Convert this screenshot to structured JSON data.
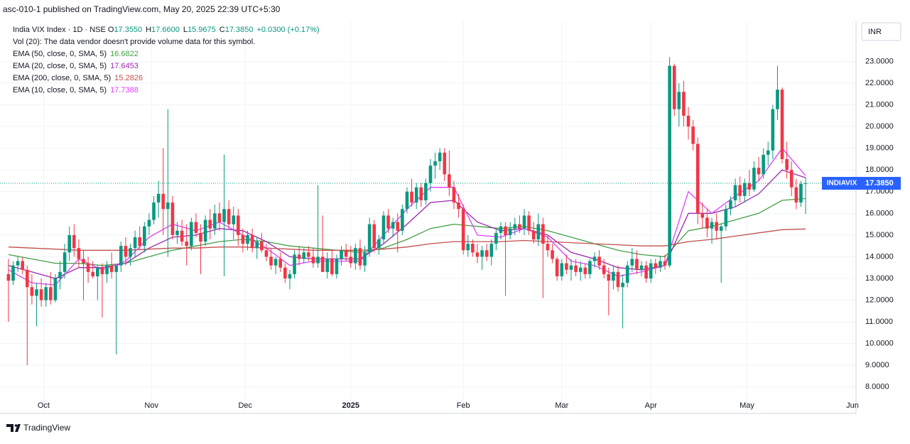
{
  "chart_data": {
    "type": "candlestick",
    "header": "asc-010-1 published on TradingView.com, May 20, 2025 22:39 UTC+5:30",
    "symbol": "India VIX Index · 1D · NSE",
    "ohlc": [
      {
        "label": "O",
        "value": "17.3550"
      },
      {
        "label": "H",
        "value": "17.6600"
      },
      {
        "label": "L",
        "value": "15.9675"
      },
      {
        "label": "C",
        "value": "17.3850"
      }
    ],
    "change": "+0.0300 (+0.17%)",
    "volume_note": "Vol (20): The data vendor doesn't provide volume data for this symbol.",
    "currency": "INR",
    "symbol_tag": "INDIAVIX",
    "last_price_label": "17.3850",
    "footer": "TradingView",
    "up_color": "#089981",
    "down_color": "#f23645",
    "grid": true,
    "candles": [
      [
        13.2,
        13.9,
        11.0,
        12.9
      ],
      [
        12.9,
        13.8,
        12.7,
        13.6
      ],
      [
        13.6,
        14.0,
        13.3,
        13.8
      ],
      [
        13.8,
        14.0,
        13.2,
        13.4
      ],
      [
        13.4,
        13.6,
        9.0,
        12.6
      ],
      [
        12.6,
        13.2,
        11.8,
        12.2
      ],
      [
        12.2,
        12.8,
        10.8,
        12.5
      ],
      [
        12.5,
        13.0,
        11.7,
        12.0
      ],
      [
        12.0,
        12.8,
        11.7,
        12.6
      ],
      [
        12.6,
        13.3,
        11.8,
        12.0
      ],
      [
        12.0,
        13.2,
        11.9,
        13.0
      ],
      [
        13.0,
        13.8,
        12.5,
        13.3
      ],
      [
        13.3,
        14.6,
        13.0,
        14.2
      ],
      [
        14.2,
        15.4,
        13.8,
        15.0
      ],
      [
        15.0,
        15.5,
        14.0,
        14.4
      ],
      [
        14.4,
        14.8,
        13.5,
        13.9
      ],
      [
        13.9,
        14.3,
        12.0,
        13.7
      ],
      [
        13.7,
        14.0,
        12.8,
        13.3
      ],
      [
        13.3,
        13.8,
        13.0,
        13.1
      ],
      [
        13.1,
        13.6,
        12.0,
        13.5
      ],
      [
        13.5,
        13.7,
        11.2,
        13.2
      ],
      [
        13.2,
        13.8,
        12.8,
        13.6
      ],
      [
        13.6,
        14.2,
        13.0,
        13.3
      ],
      [
        13.3,
        13.5,
        9.5,
        13.6
      ],
      [
        13.6,
        14.7,
        13.3,
        14.5
      ],
      [
        14.5,
        14.9,
        13.6,
        14.0
      ],
      [
        14.0,
        14.6,
        13.6,
        14.4
      ],
      [
        14.4,
        15.2,
        14.0,
        14.9
      ],
      [
        14.9,
        15.4,
        14.3,
        14.5
      ],
      [
        14.5,
        15.6,
        14.2,
        15.4
      ],
      [
        15.4,
        16.0,
        15.0,
        15.7
      ],
      [
        15.7,
        16.8,
        15.5,
        16.5
      ],
      [
        16.5,
        17.5,
        15.8,
        16.9
      ],
      [
        16.9,
        19.0,
        15.0,
        16.2
      ],
      [
        16.2,
        20.8,
        14.0,
        16.5
      ],
      [
        16.5,
        16.8,
        14.8,
        15.0
      ],
      [
        15.0,
        15.6,
        14.6,
        15.2
      ],
      [
        15.2,
        15.7,
        14.5,
        14.7
      ],
      [
        14.7,
        15.5,
        13.6,
        14.5
      ],
      [
        14.5,
        15.8,
        14.3,
        15.6
      ],
      [
        15.6,
        16.0,
        14.9,
        15.1
      ],
      [
        15.1,
        15.5,
        13.2,
        14.7
      ],
      [
        14.7,
        15.9,
        14.5,
        15.7
      ],
      [
        15.7,
        16.2,
        14.8,
        15.3
      ],
      [
        15.3,
        16.4,
        15.0,
        16.0
      ],
      [
        16.0,
        16.5,
        15.2,
        15.6
      ],
      [
        15.6,
        18.7,
        13.1,
        16.2
      ],
      [
        16.2,
        16.6,
        15.3,
        15.5
      ],
      [
        15.5,
        16.3,
        14.8,
        15.9
      ],
      [
        15.9,
        16.2,
        14.5,
        15.0
      ],
      [
        15.0,
        15.3,
        14.2,
        14.6
      ],
      [
        14.6,
        15.2,
        14.3,
        15.0
      ],
      [
        15.0,
        15.3,
        14.2,
        14.4
      ],
      [
        14.4,
        14.9,
        13.9,
        14.7
      ],
      [
        14.7,
        15.1,
        14.2,
        14.3
      ],
      [
        14.3,
        14.6,
        13.8,
        14.0
      ],
      [
        14.0,
        14.4,
        13.4,
        13.6
      ],
      [
        13.6,
        14.0,
        13.2,
        13.9
      ],
      [
        13.9,
        14.2,
        13.3,
        13.5
      ],
      [
        13.5,
        13.7,
        12.8,
        13.0
      ],
      [
        13.0,
        13.4,
        12.5,
        13.2
      ],
      [
        13.2,
        14.3,
        13.0,
        14.1
      ],
      [
        14.1,
        14.5,
        13.6,
        13.9
      ],
      [
        13.9,
        14.4,
        13.7,
        14.2
      ],
      [
        14.2,
        14.5,
        13.8,
        14.0
      ],
      [
        14.0,
        14.4,
        13.5,
        13.7
      ],
      [
        13.7,
        17.3,
        13.5,
        14.0
      ],
      [
        14.0,
        15.9,
        13.3,
        13.3
      ],
      [
        13.3,
        14.2,
        13.0,
        13.9
      ],
      [
        13.9,
        14.3,
        13.1,
        13.2
      ],
      [
        13.2,
        14.1,
        13.0,
        13.9
      ],
      [
        13.9,
        14.5,
        13.6,
        14.3
      ],
      [
        14.3,
        14.6,
        13.8,
        14.0
      ],
      [
        14.0,
        14.5,
        13.5,
        13.7
      ],
      [
        13.7,
        14.6,
        13.4,
        14.4
      ],
      [
        14.4,
        14.8,
        13.4,
        13.6
      ],
      [
        13.6,
        14.5,
        13.3,
        14.2
      ],
      [
        14.2,
        15.8,
        14.0,
        15.5
      ],
      [
        15.5,
        15.7,
        14.2,
        14.4
      ],
      [
        14.4,
        15.0,
        14.1,
        14.8
      ],
      [
        14.8,
        16.1,
        14.6,
        15.9
      ],
      [
        15.9,
        16.2,
        15.1,
        15.3
      ],
      [
        15.3,
        15.8,
        14.9,
        15.6
      ],
      [
        15.6,
        16.0,
        14.2,
        15.2
      ],
      [
        15.2,
        16.4,
        15.0,
        16.2
      ],
      [
        16.2,
        17.2,
        16.0,
        17.0
      ],
      [
        17.0,
        17.6,
        16.3,
        16.5
      ],
      [
        16.5,
        17.4,
        16.2,
        17.2
      ],
      [
        17.2,
        17.4,
        16.3,
        16.6
      ],
      [
        16.6,
        17.6,
        16.4,
        17.4
      ],
      [
        17.4,
        18.5,
        17.0,
        18.2
      ],
      [
        18.2,
        18.8,
        17.6,
        18.4
      ],
      [
        18.4,
        19.0,
        18.0,
        18.8
      ],
      [
        18.8,
        19.0,
        17.5,
        17.8
      ],
      [
        17.8,
        18.9,
        16.8,
        17.2
      ],
      [
        17.2,
        17.5,
        16.2,
        16.5
      ],
      [
        16.5,
        16.9,
        15.8,
        16.2
      ],
      [
        16.2,
        16.4,
        14.1,
        14.3
      ],
      [
        14.3,
        15.0,
        14.0,
        14.6
      ],
      [
        14.6,
        14.8,
        14.0,
        14.2
      ],
      [
        14.2,
        14.6,
        13.7,
        14.0
      ],
      [
        14.0,
        14.5,
        13.4,
        14.3
      ],
      [
        14.3,
        14.6,
        13.8,
        14.0
      ],
      [
        14.0,
        14.8,
        13.6,
        14.6
      ],
      [
        14.6,
        15.3,
        14.3,
        15.1
      ],
      [
        15.1,
        15.6,
        14.8,
        15.4
      ],
      [
        15.4,
        15.6,
        12.2,
        15.0
      ],
      [
        15.0,
        15.6,
        14.8,
        15.3
      ],
      [
        15.3,
        15.8,
        15.0,
        15.5
      ],
      [
        15.5,
        15.9,
        15.1,
        15.3
      ],
      [
        15.3,
        16.2,
        15.0,
        15.9
      ],
      [
        15.9,
        16.1,
        15.0,
        15.2
      ],
      [
        15.2,
        15.6,
        14.6,
        14.8
      ],
      [
        14.8,
        16.0,
        14.5,
        15.5
      ],
      [
        15.5,
        15.8,
        12.1,
        14.6
      ],
      [
        14.6,
        15.0,
        14.0,
        14.3
      ],
      [
        14.3,
        14.6,
        13.7,
        13.9
      ],
      [
        13.9,
        14.0,
        12.9,
        13.1
      ],
      [
        13.1,
        13.9,
        12.9,
        13.7
      ],
      [
        13.7,
        14.1,
        13.2,
        13.4
      ],
      [
        13.4,
        13.9,
        12.9,
        13.6
      ],
      [
        13.6,
        13.9,
        13.1,
        13.3
      ],
      [
        13.3,
        13.8,
        12.9,
        13.5
      ],
      [
        13.5,
        13.7,
        13.0,
        13.2
      ],
      [
        13.2,
        13.9,
        13.0,
        13.8
      ],
      [
        13.8,
        14.2,
        13.5,
        14.0
      ],
      [
        14.0,
        14.3,
        13.4,
        13.6
      ],
      [
        13.6,
        13.9,
        13.0,
        13.2
      ],
      [
        13.2,
        13.5,
        11.3,
        12.9
      ],
      [
        12.9,
        13.6,
        12.5,
        13.3
      ],
      [
        13.3,
        13.6,
        12.4,
        12.6
      ],
      [
        12.6,
        13.2,
        10.7,
        12.8
      ],
      [
        12.8,
        13.8,
        12.6,
        13.6
      ],
      [
        13.6,
        14.4,
        13.3,
        13.9
      ],
      [
        13.9,
        14.3,
        13.2,
        13.4
      ],
      [
        13.4,
        13.8,
        13.1,
        13.6
      ],
      [
        13.6,
        13.8,
        12.8,
        13.0
      ],
      [
        13.0,
        13.9,
        12.8,
        13.7
      ],
      [
        13.7,
        13.9,
        13.2,
        13.5
      ],
      [
        13.5,
        14.0,
        13.3,
        13.8
      ],
      [
        13.8,
        14.1,
        13.4,
        13.6
      ],
      [
        13.6,
        23.2,
        13.5,
        22.8
      ],
      [
        22.8,
        22.9,
        20.5,
        20.8
      ],
      [
        20.8,
        22.0,
        20.0,
        21.6
      ],
      [
        21.6,
        22.1,
        20.0,
        20.5
      ],
      [
        20.5,
        20.9,
        19.4,
        20.0
      ],
      [
        20.0,
        20.3,
        18.9,
        19.2
      ],
      [
        19.2,
        19.5,
        15.5,
        16.0
      ],
      [
        16.0,
        16.5,
        15.3,
        15.8
      ],
      [
        15.8,
        16.2,
        14.9,
        15.3
      ],
      [
        15.3,
        15.8,
        14.6,
        15.6
      ],
      [
        15.6,
        16.0,
        14.8,
        15.2
      ],
      [
        15.2,
        15.5,
        12.8,
        15.4
      ],
      [
        15.4,
        16.4,
        15.2,
        16.2
      ],
      [
        16.2,
        16.8,
        15.9,
        16.6
      ],
      [
        16.6,
        17.6,
        16.3,
        17.3
      ],
      [
        17.3,
        17.7,
        16.5,
        16.8
      ],
      [
        16.8,
        17.6,
        16.5,
        17.4
      ],
      [
        17.4,
        18.0,
        16.8,
        17.1
      ],
      [
        17.1,
        18.4,
        17.0,
        18.1
      ],
      [
        18.1,
        18.6,
        17.5,
        17.8
      ],
      [
        17.8,
        19.0,
        17.6,
        18.7
      ],
      [
        18.7,
        19.3,
        18.2,
        18.9
      ],
      [
        18.9,
        21.0,
        18.5,
        20.8
      ],
      [
        20.8,
        22.8,
        20.3,
        21.7
      ],
      [
        21.7,
        21.8,
        18.3,
        18.5
      ],
      [
        18.5,
        19.3,
        17.6,
        18.0
      ],
      [
        18.0,
        18.4,
        16.8,
        17.2
      ],
      [
        17.2,
        17.6,
        16.2,
        16.5
      ],
      [
        16.5,
        17.5,
        16.3,
        17.355
      ],
      [
        17.355,
        17.66,
        15.9675,
        17.385
      ]
    ],
    "series": [
      {
        "name": "EMA (50, close, 0, SMA, 5)",
        "legend_value": "16.6822",
        "color": "#43a047",
        "x": [
          0,
          5,
          10,
          15,
          20,
          25,
          30,
          35,
          40,
          45,
          50,
          55,
          60,
          65,
          70,
          75,
          80,
          85,
          90,
          95,
          100,
          105,
          110,
          115,
          120,
          125,
          130,
          135,
          140,
          145,
          150,
          155,
          160,
          165,
          170
        ],
        "values": [
          14.1,
          13.9,
          13.7,
          13.7,
          13.6,
          13.7,
          14.0,
          14.3,
          14.5,
          14.7,
          14.8,
          14.7,
          14.5,
          14.4,
          14.3,
          14.2,
          14.4,
          14.8,
          15.3,
          15.5,
          15.4,
          15.3,
          15.4,
          15.2,
          14.9,
          14.6,
          14.3,
          14.1,
          14.0,
          15.2,
          15.4,
          15.7,
          16.0,
          16.6,
          16.6822
        ]
      },
      {
        "name": "EMA (20, close, 0, SMA, 5)",
        "legend_value": "17.6453",
        "color": "#9c27b0",
        "x": [
          0,
          5,
          10,
          15,
          20,
          25,
          30,
          35,
          40,
          45,
          50,
          55,
          60,
          65,
          70,
          75,
          80,
          85,
          90,
          95,
          100,
          105,
          110,
          115,
          120,
          125,
          130,
          135,
          140,
          145,
          150,
          155,
          160,
          165,
          170
        ],
        "values": [
          13.6,
          13.3,
          13.0,
          13.5,
          13.5,
          13.7,
          14.4,
          14.9,
          15.0,
          15.3,
          15.2,
          14.7,
          14.0,
          13.9,
          13.9,
          13.9,
          14.6,
          15.5,
          16.5,
          16.6,
          15.6,
          15.2,
          15.3,
          15.0,
          14.2,
          13.9,
          13.5,
          13.4,
          13.6,
          16.0,
          16.0,
          16.3,
          16.9,
          18.0,
          17.6453
        ]
      },
      {
        "name": "EMA (200, close, 0, SMA, 5)",
        "legend_value": "15.2826",
        "color": "#c0504d",
        "x": [
          0,
          5,
          10,
          15,
          20,
          25,
          30,
          35,
          40,
          45,
          50,
          55,
          60,
          65,
          70,
          75,
          80,
          85,
          90,
          95,
          100,
          105,
          110,
          115,
          120,
          125,
          130,
          135,
          140,
          145,
          150,
          155,
          160,
          165,
          170
        ],
        "values": [
          14.45,
          14.4,
          14.35,
          14.3,
          14.3,
          14.3,
          14.35,
          14.4,
          14.4,
          14.45,
          14.45,
          14.4,
          14.35,
          14.3,
          14.3,
          14.3,
          14.35,
          14.45,
          14.6,
          14.7,
          14.7,
          14.7,
          14.75,
          14.7,
          14.65,
          14.6,
          14.55,
          14.5,
          14.5,
          14.7,
          14.8,
          14.95,
          15.1,
          15.25,
          15.2826
        ]
      },
      {
        "name": "EMA (10, close, 0, SMA, 5)",
        "legend_value": "17.7388",
        "color": "#e040fb",
        "x": [
          0,
          5,
          10,
          15,
          20,
          25,
          30,
          35,
          40,
          45,
          50,
          55,
          60,
          65,
          70,
          75,
          80,
          85,
          90,
          95,
          100,
          105,
          110,
          115,
          120,
          125,
          130,
          135,
          140,
          145,
          150,
          155,
          160,
          165,
          170
        ],
        "values": [
          13.4,
          12.8,
          12.7,
          13.9,
          13.4,
          13.8,
          14.9,
          15.5,
          15.2,
          15.6,
          15.0,
          14.4,
          13.6,
          13.8,
          13.8,
          13.8,
          15.0,
          16.2,
          17.2,
          17.2,
          15.0,
          14.9,
          15.3,
          14.9,
          13.8,
          13.6,
          13.1,
          13.3,
          13.6,
          17.0,
          16.0,
          16.8,
          17.5,
          19.0,
          17.7388
        ]
      }
    ],
    "xlim": [
      -1.8,
      180.75
    ],
    "xticks": [
      {
        "value": 7.5,
        "label": "Oct"
      },
      {
        "value": 30.5,
        "label": "Nov"
      },
      {
        "value": 50.5,
        "label": "Dec"
      },
      {
        "value": 73,
        "label": "2025"
      },
      {
        "value": 97,
        "label": "Feb"
      },
      {
        "value": 118,
        "label": "Mar"
      },
      {
        "value": 137,
        "label": "Apr"
      },
      {
        "value": 157.5,
        "label": "May"
      },
      {
        "value": 180,
        "label": "Jun"
      }
    ],
    "ylim": [
      7.5,
      24.85
    ],
    "yticks": [
      {
        "value": 8,
        "label": "8.0000"
      },
      {
        "value": 9,
        "label": "9.0000"
      },
      {
        "value": 10,
        "label": "10.0000"
      },
      {
        "value": 11,
        "label": "11.0000"
      },
      {
        "value": 12,
        "label": "12.0000"
      },
      {
        "value": 13,
        "label": "13.0000"
      },
      {
        "value": 14,
        "label": "14.0000"
      },
      {
        "value": 15,
        "label": "15.0000"
      },
      {
        "value": 16,
        "label": "16.0000"
      },
      {
        "value": 17,
        "label": "17.0000"
      },
      {
        "value": 18,
        "label": "18.0000"
      },
      {
        "value": 19,
        "label": "19.0000"
      },
      {
        "value": 20,
        "label": "20.0000"
      },
      {
        "value": 21,
        "label": "21.0000"
      },
      {
        "value": 22,
        "label": "22.0000"
      },
      {
        "value": 23,
        "label": "23.0000"
      }
    ]
  }
}
